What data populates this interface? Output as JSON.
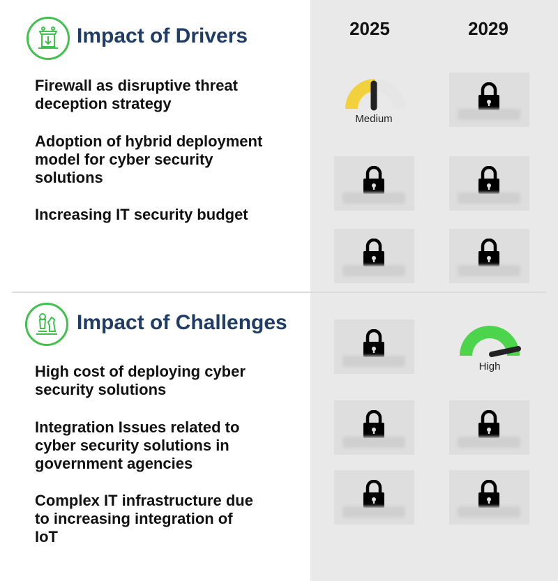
{
  "columns": [
    "2025",
    "2029"
  ],
  "drivers": {
    "title": "Impact of Drivers",
    "icon": "building-download-icon",
    "rows": [
      {
        "label_lines": [
          "Firewall as disruptive threat",
          "deception strategy"
        ],
        "y2025": {
          "type": "gauge",
          "value": "Medium",
          "level": 0.5,
          "color": "#f2d23c"
        },
        "y2029": {
          "type": "locked"
        }
      },
      {
        "label_lines": [
          "Adoption of hybrid deployment",
          "model for cyber security",
          "solutions"
        ],
        "y2025": {
          "type": "locked"
        },
        "y2029": {
          "type": "locked"
        }
      },
      {
        "label_lines": [
          "Increasing IT security budget"
        ],
        "y2025": {
          "type": "locked"
        },
        "y2029": {
          "type": "locked"
        }
      }
    ]
  },
  "challenges": {
    "title": "Impact of Challenges",
    "icon": "chess-pieces-icon",
    "rows": [
      {
        "label_lines": [
          "High cost of deploying cyber",
          "security solutions"
        ],
        "y2025": {
          "type": "locked"
        },
        "y2029": {
          "type": "gauge",
          "value": "High",
          "level": 0.85,
          "color": "#4cd44c"
        }
      },
      {
        "label_lines": [
          "Integration Issues related to",
          "cyber security solutions in",
          "government agencies"
        ],
        "y2025": {
          "type": "locked"
        },
        "y2029": {
          "type": "locked"
        }
      },
      {
        "label_lines": [
          "Complex IT infrastructure due",
          "to increasing integration of",
          "IoT"
        ],
        "y2025": {
          "type": "locked"
        },
        "y2029": {
          "type": "locked"
        }
      }
    ]
  },
  "colors": {
    "accent_green": "#3fc14c",
    "title_blue": "#1f3d66",
    "medium_yellow": "#f2d23c",
    "high_green": "#4cd44c"
  }
}
